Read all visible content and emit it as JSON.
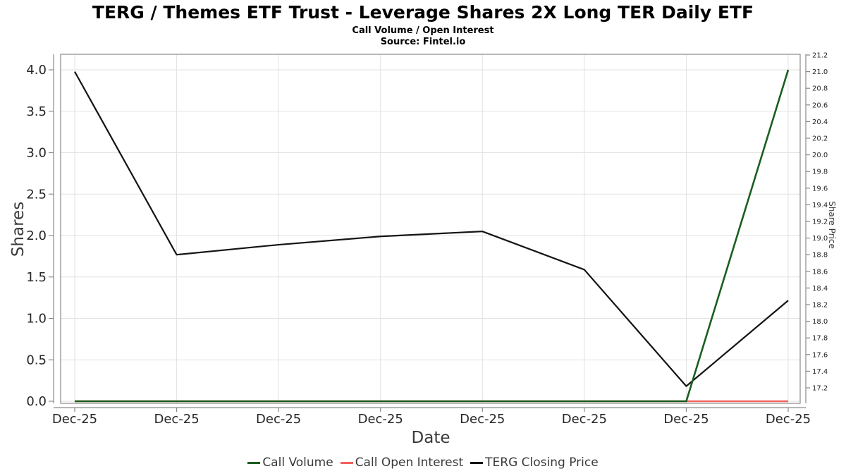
{
  "chart_data": {
    "type": "line",
    "title": "TERG / Themes ETF Trust - Leverage Shares 2X Long TER Daily ETF",
    "subtitle": "Call Volume / Open Interest",
    "source": "Source: Fintel.io",
    "xlabel": "Date",
    "x_tick_labels": [
      "Dec-25",
      "Dec-25",
      "Dec-25",
      "Dec-25",
      "Dec-25",
      "Dec-25",
      "Dec-25",
      "Dec-25"
    ],
    "grid": true,
    "legend_position": "bottom-center",
    "axes": {
      "left": {
        "label": "Shares",
        "min": 0.0,
        "max": 4.0,
        "tick_labels": [
          "0.0",
          "0.5",
          "1.0",
          "1.5",
          "2.0",
          "2.5",
          "3.0",
          "3.5",
          "4.0"
        ]
      },
      "right": {
        "label": "Share Price",
        "min": 17.2,
        "max": 21.2,
        "tick_labels": [
          "17.2",
          "17.4",
          "17.6",
          "17.8",
          "18.0",
          "18.2",
          "18.4",
          "18.6",
          "18.8",
          "19.0",
          "19.2",
          "19.4",
          "19.6",
          "19.8",
          "20.0",
          "20.2",
          "20.4",
          "20.6",
          "20.8",
          "21.0",
          "21.2"
        ]
      }
    },
    "series": [
      {
        "name": "Call Volume",
        "axis": "left",
        "color": "#1b5e20",
        "values": [
          0,
          0,
          0,
          0,
          0,
          0,
          0,
          4
        ]
      },
      {
        "name": "Call Open Interest",
        "axis": "left",
        "color": "#f2635c",
        "values": [
          0,
          0,
          0,
          0,
          0,
          0,
          0,
          0
        ]
      },
      {
        "name": "TERG Closing Price",
        "axis": "right",
        "color": "#141414",
        "values": [
          21.0,
          18.8,
          18.92,
          19.02,
          19.08,
          18.62,
          17.22,
          18.25
        ]
      }
    ]
  }
}
